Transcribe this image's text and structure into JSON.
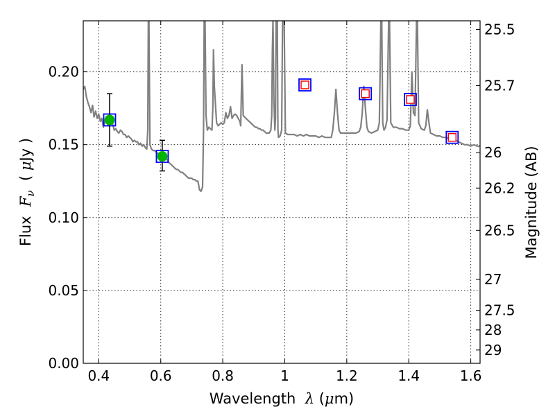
{
  "chart_data": {
    "type": "scatter",
    "xlabel": "Wavelength  λ (μm)",
    "ylabel": "Flux  F_ν  ( μJy )",
    "ylabel_parts": {
      "a": "Flux  ",
      "b": "F",
      "c": "ν",
      "d": "  ( ",
      "e": "μ",
      "f": "Jy )"
    },
    "xlabel_parts": {
      "a": "Wavelength  ",
      "b": "λ",
      "c": " (",
      "d": "μ",
      "e": "m)"
    },
    "y2label": "Magnitude (AB)",
    "xlim": [
      0.35,
      1.63
    ],
    "ylim": [
      0.0,
      0.235
    ],
    "grid": true,
    "x_ticks": [
      "0.4",
      "0.6",
      "0.8",
      "1",
      "1.2",
      "1.4",
      "1.6"
    ],
    "x_tick_values": [
      0.4,
      0.6,
      0.8,
      1.0,
      1.2,
      1.4,
      1.6
    ],
    "y_ticks": [
      "0.00",
      "0.05",
      "0.10",
      "0.15",
      "0.20"
    ],
    "y_tick_values": [
      0.0,
      0.05,
      0.1,
      0.15,
      0.2
    ],
    "mag_ticks": [
      "25.5",
      "25.7",
      "26",
      "26.2",
      "26.5",
      "27",
      "27.5",
      "28",
      "29"
    ],
    "mag_tick_values": [
      25.5,
      25.7,
      26.0,
      26.2,
      26.5,
      27.0,
      27.5,
      28.0,
      29.0
    ],
    "series": [
      {
        "kind": "model",
        "color": "#808080",
        "points": [
          [
            0.35,
            0.188
          ],
          [
            0.355,
            0.19
          ],
          [
            0.36,
            0.183
          ],
          [
            0.365,
            0.179
          ],
          [
            0.37,
            0.176
          ],
          [
            0.375,
            0.172
          ],
          [
            0.38,
            0.177
          ],
          [
            0.385,
            0.169
          ],
          [
            0.39,
            0.173
          ],
          [
            0.395,
            0.168
          ],
          [
            0.4,
            0.171
          ],
          [
            0.405,
            0.166
          ],
          [
            0.41,
            0.168
          ],
          [
            0.415,
            0.162
          ],
          [
            0.42,
            0.166
          ],
          [
            0.425,
            0.167
          ],
          [
            0.43,
            0.163
          ],
          [
            0.435,
            0.168
          ],
          [
            0.44,
            0.165
          ],
          [
            0.445,
            0.164
          ],
          [
            0.45,
            0.16
          ],
          [
            0.455,
            0.161
          ],
          [
            0.46,
            0.159
          ],
          [
            0.465,
            0.158
          ],
          [
            0.47,
            0.16
          ],
          [
            0.475,
            0.159
          ],
          [
            0.48,
            0.157
          ],
          [
            0.485,
            0.157
          ],
          [
            0.49,
            0.155
          ],
          [
            0.495,
            0.156
          ],
          [
            0.5,
            0.155
          ],
          [
            0.505,
            0.154
          ],
          [
            0.51,
            0.152
          ],
          [
            0.515,
            0.153
          ],
          [
            0.52,
            0.152
          ],
          [
            0.525,
            0.152
          ],
          [
            0.53,
            0.15
          ],
          [
            0.535,
            0.151
          ],
          [
            0.54,
            0.149
          ],
          [
            0.545,
            0.15
          ],
          [
            0.55,
            0.148
          ],
          [
            0.555,
            0.147
          ],
          [
            0.558,
            0.16
          ],
          [
            0.56,
            0.235
          ],
          [
            0.562,
            0.235
          ],
          [
            0.565,
            0.15
          ],
          [
            0.57,
            0.147
          ],
          [
            0.575,
            0.146
          ],
          [
            0.58,
            0.146
          ],
          [
            0.585,
            0.145
          ],
          [
            0.59,
            0.144
          ],
          [
            0.595,
            0.144
          ],
          [
            0.6,
            0.143
          ],
          [
            0.605,
            0.142
          ],
          [
            0.61,
            0.142
          ],
          [
            0.615,
            0.141
          ],
          [
            0.62,
            0.14
          ],
          [
            0.625,
            0.138
          ],
          [
            0.63,
            0.137
          ],
          [
            0.635,
            0.136
          ],
          [
            0.64,
            0.135
          ],
          [
            0.645,
            0.134
          ],
          [
            0.65,
            0.133
          ],
          [
            0.655,
            0.133
          ],
          [
            0.66,
            0.132
          ],
          [
            0.665,
            0.131
          ],
          [
            0.67,
            0.131
          ],
          [
            0.675,
            0.13
          ],
          [
            0.68,
            0.129
          ],
          [
            0.685,
            0.128
          ],
          [
            0.69,
            0.127
          ],
          [
            0.695,
            0.127
          ],
          [
            0.7,
            0.127
          ],
          [
            0.705,
            0.126
          ],
          [
            0.71,
            0.126
          ],
          [
            0.715,
            0.125
          ],
          [
            0.72,
            0.125
          ],
          [
            0.725,
            0.119
          ],
          [
            0.73,
            0.118
          ],
          [
            0.735,
            0.121
          ],
          [
            0.738,
            0.16
          ],
          [
            0.74,
            0.235
          ],
          [
            0.743,
            0.235
          ],
          [
            0.746,
            0.17
          ],
          [
            0.75,
            0.16
          ],
          [
            0.755,
            0.162
          ],
          [
            0.76,
            0.161
          ],
          [
            0.765,
            0.16
          ],
          [
            0.768,
            0.175
          ],
          [
            0.77,
            0.215
          ],
          [
            0.773,
            0.19
          ],
          [
            0.78,
            0.165
          ],
          [
            0.785,
            0.163
          ],
          [
            0.79,
            0.164
          ],
          [
            0.795,
            0.165
          ],
          [
            0.8,
            0.164
          ],
          [
            0.805,
            0.165
          ],
          [
            0.81,
            0.172
          ],
          [
            0.815,
            0.168
          ],
          [
            0.82,
            0.17
          ],
          [
            0.825,
            0.176
          ],
          [
            0.83,
            0.168
          ],
          [
            0.835,
            0.17
          ],
          [
            0.84,
            0.171
          ],
          [
            0.845,
            0.17
          ],
          [
            0.85,
            0.168
          ],
          [
            0.855,
            0.166
          ],
          [
            0.858,
            0.163
          ],
          [
            0.862,
            0.205
          ],
          [
            0.866,
            0.17
          ],
          [
            0.87,
            0.169
          ],
          [
            0.875,
            0.168
          ],
          [
            0.88,
            0.167
          ],
          [
            0.885,
            0.166
          ],
          [
            0.89,
            0.165
          ],
          [
            0.895,
            0.164
          ],
          [
            0.9,
            0.163
          ],
          [
            0.905,
            0.162
          ],
          [
            0.91,
            0.162
          ],
          [
            0.915,
            0.161
          ],
          [
            0.92,
            0.161
          ],
          [
            0.925,
            0.16
          ],
          [
            0.93,
            0.16
          ],
          [
            0.935,
            0.159
          ],
          [
            0.94,
            0.158
          ],
          [
            0.945,
            0.158
          ],
          [
            0.95,
            0.158
          ],
          [
            0.955,
            0.16
          ],
          [
            0.958,
            0.17
          ],
          [
            0.96,
            0.215
          ],
          [
            0.962,
            0.235
          ],
          [
            0.965,
            0.18
          ],
          [
            0.968,
            0.16
          ],
          [
            0.97,
            0.168
          ],
          [
            0.972,
            0.235
          ],
          [
            0.976,
            0.235
          ],
          [
            0.978,
            0.16
          ],
          [
            0.98,
            0.155
          ],
          [
            0.985,
            0.156
          ],
          [
            0.99,
            0.16
          ],
          [
            0.993,
            0.235
          ],
          [
            0.998,
            0.235
          ],
          [
            1.002,
            0.158
          ],
          [
            1.01,
            0.157
          ],
          [
            1.02,
            0.157
          ],
          [
            1.03,
            0.157
          ],
          [
            1.04,
            0.156
          ],
          [
            1.05,
            0.157
          ],
          [
            1.06,
            0.156
          ],
          [
            1.07,
            0.157
          ],
          [
            1.08,
            0.156
          ],
          [
            1.09,
            0.156
          ],
          [
            1.1,
            0.156
          ],
          [
            1.11,
            0.155
          ],
          [
            1.12,
            0.156
          ],
          [
            1.13,
            0.155
          ],
          [
            1.14,
            0.155
          ],
          [
            1.15,
            0.155
          ],
          [
            1.155,
            0.16
          ],
          [
            1.16,
            0.172
          ],
          [
            1.165,
            0.188
          ],
          [
            1.17,
            0.172
          ],
          [
            1.175,
            0.16
          ],
          [
            1.18,
            0.158
          ],
          [
            1.19,
            0.158
          ],
          [
            1.2,
            0.158
          ],
          [
            1.21,
            0.158
          ],
          [
            1.22,
            0.158
          ],
          [
            1.23,
            0.158
          ],
          [
            1.24,
            0.159
          ],
          [
            1.245,
            0.162
          ],
          [
            1.25,
            0.172
          ],
          [
            1.255,
            0.19
          ],
          [
            1.26,
            0.175
          ],
          [
            1.265,
            0.162
          ],
          [
            1.27,
            0.159
          ],
          [
            1.28,
            0.158
          ],
          [
            1.29,
            0.159
          ],
          [
            1.3,
            0.16
          ],
          [
            1.305,
            0.165
          ],
          [
            1.31,
            0.235
          ],
          [
            1.313,
            0.235
          ],
          [
            1.316,
            0.165
          ],
          [
            1.32,
            0.16
          ],
          [
            1.325,
            0.162
          ],
          [
            1.33,
            0.167
          ],
          [
            1.335,
            0.235
          ],
          [
            1.338,
            0.235
          ],
          [
            1.342,
            0.165
          ],
          [
            1.35,
            0.162
          ],
          [
            1.36,
            0.162
          ],
          [
            1.37,
            0.161
          ],
          [
            1.38,
            0.161
          ],
          [
            1.39,
            0.16
          ],
          [
            1.4,
            0.16
          ],
          [
            1.405,
            0.163
          ],
          [
            1.41,
            0.2
          ],
          [
            1.415,
            0.172
          ],
          [
            1.42,
            0.17
          ],
          [
            1.425,
            0.235
          ],
          [
            1.428,
            0.235
          ],
          [
            1.432,
            0.165
          ],
          [
            1.44,
            0.161
          ],
          [
            1.45,
            0.16
          ],
          [
            1.455,
            0.163
          ],
          [
            1.46,
            0.174
          ],
          [
            1.465,
            0.165
          ],
          [
            1.47,
            0.158
          ],
          [
            1.48,
            0.157
          ],
          [
            1.49,
            0.156
          ],
          [
            1.5,
            0.156
          ],
          [
            1.51,
            0.155
          ],
          [
            1.52,
            0.155
          ],
          [
            1.53,
            0.154
          ],
          [
            1.54,
            0.153
          ],
          [
            1.55,
            0.153
          ],
          [
            1.56,
            0.152
          ],
          [
            1.57,
            0.151
          ],
          [
            1.58,
            0.15
          ],
          [
            1.59,
            0.15
          ],
          [
            1.6,
            0.149
          ],
          [
            1.61,
            0.15
          ],
          [
            1.62,
            0.149
          ],
          [
            1.63,
            0.149
          ]
        ]
      },
      {
        "kind": "model_photometry",
        "color": "#0000ff",
        "x": [
          0.435,
          0.605,
          1.065,
          1.26,
          1.405,
          1.54
        ],
        "y": [
          0.167,
          0.142,
          0.191,
          0.185,
          0.181,
          0.155
        ]
      },
      {
        "kind": "observed_detections",
        "color": "#00b400",
        "x": [
          0.435,
          0.605
        ],
        "y": [
          0.167,
          0.142
        ],
        "yerr_low": [
          0.149,
          0.132
        ],
        "yerr_high": [
          0.185,
          0.153
        ]
      },
      {
        "kind": "upper_limits",
        "color": "#ff0000",
        "x": [
          1.065,
          1.26,
          1.405,
          1.54
        ],
        "y": [
          0.191,
          0.185,
          0.181,
          0.155
        ]
      }
    ]
  }
}
